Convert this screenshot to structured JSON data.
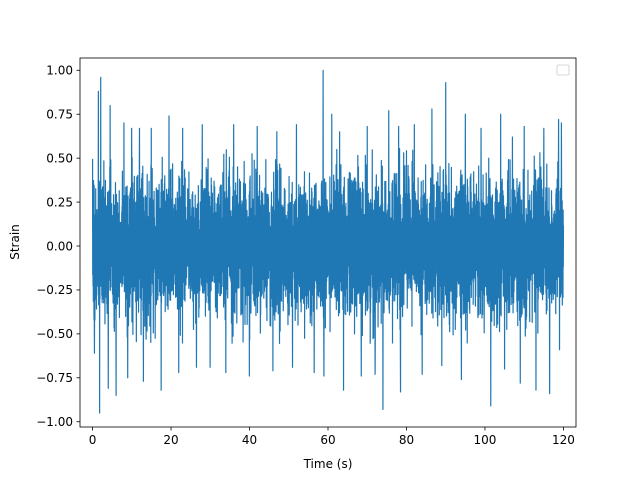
{
  "chart_data": {
    "type": "line",
    "title": "",
    "xlabel": "Time (s)",
    "ylabel": "Strain",
    "xlim": [
      -3.2,
      123.2
    ],
    "ylim": [
      -1.03,
      1.07
    ],
    "xticks": [
      0,
      20,
      40,
      60,
      80,
      100,
      120
    ],
    "xtick_labels": [
      "0",
      "20",
      "40",
      "60",
      "80",
      "100",
      "120"
    ],
    "yticks": [
      -1.0,
      -0.75,
      -0.5,
      -0.25,
      0.0,
      0.25,
      0.5,
      0.75,
      1.0
    ],
    "ytick_labels": [
      "−1.00",
      "−0.75",
      "−0.50",
      "−0.25",
      "0.00",
      "0.25",
      "0.50",
      "0.75",
      "1.00"
    ],
    "grid": false,
    "legend": {
      "position": "top-right",
      "entries": []
    },
    "series": [
      {
        "color": "#1f77b4",
        "x_range": [
          0,
          120
        ],
        "typical_band": [
          -0.4,
          0.4
        ],
        "peaks_up": [
          [
            1.5,
            0.88
          ],
          [
            2.1,
            0.96
          ],
          [
            4.5,
            0.8
          ],
          [
            8.0,
            0.7
          ],
          [
            10.0,
            0.67
          ],
          [
            12.0,
            0.67
          ],
          [
            15.0,
            0.67
          ],
          [
            19.5,
            0.74
          ],
          [
            23.0,
            0.67
          ],
          [
            28.0,
            0.69
          ],
          [
            36.0,
            0.69
          ],
          [
            42.0,
            0.68
          ],
          [
            47.0,
            0.65
          ],
          [
            52.0,
            0.69
          ],
          [
            58.8,
            1.0
          ],
          [
            61.0,
            0.75
          ],
          [
            63.0,
            0.65
          ],
          [
            70.0,
            0.68
          ],
          [
            75.5,
            0.77
          ],
          [
            78.0,
            0.68
          ],
          [
            82.0,
            0.69
          ],
          [
            86.5,
            0.78
          ],
          [
            90.0,
            0.93
          ],
          [
            95.0,
            0.75
          ],
          [
            99.0,
            0.67
          ],
          [
            104.0,
            0.75
          ],
          [
            107.0,
            0.62
          ],
          [
            110.0,
            0.68
          ],
          [
            115.0,
            0.67
          ],
          [
            118.8,
            0.72
          ],
          [
            119.5,
            0.7
          ]
        ],
        "peaks_down": [
          [
            0.5,
            -0.61
          ],
          [
            1.8,
            -0.95
          ],
          [
            4.0,
            -0.81
          ],
          [
            6.0,
            -0.85
          ],
          [
            9.0,
            -0.75
          ],
          [
            13.0,
            -0.77
          ],
          [
            17.5,
            -0.82
          ],
          [
            22.0,
            -0.72
          ],
          [
            26.5,
            -0.69
          ],
          [
            30.0,
            -0.69
          ],
          [
            34.0,
            -0.72
          ],
          [
            40.0,
            -0.74
          ],
          [
            46.0,
            -0.71
          ],
          [
            51.0,
            -0.69
          ],
          [
            56.5,
            -0.72
          ],
          [
            59.0,
            -0.74
          ],
          [
            64.0,
            -0.82
          ],
          [
            68.5,
            -0.74
          ],
          [
            72.0,
            -0.73
          ],
          [
            74.0,
            -0.93
          ],
          [
            78.5,
            -0.83
          ],
          [
            84.0,
            -0.73
          ],
          [
            89.0,
            -0.68
          ],
          [
            94.0,
            -0.76
          ],
          [
            101.5,
            -0.91
          ],
          [
            105.0,
            -0.7
          ],
          [
            109.0,
            -0.78
          ],
          [
            113.0,
            -0.82
          ],
          [
            116.5,
            -0.84
          ],
          [
            119.0,
            -0.59
          ]
        ]
      }
    ]
  }
}
